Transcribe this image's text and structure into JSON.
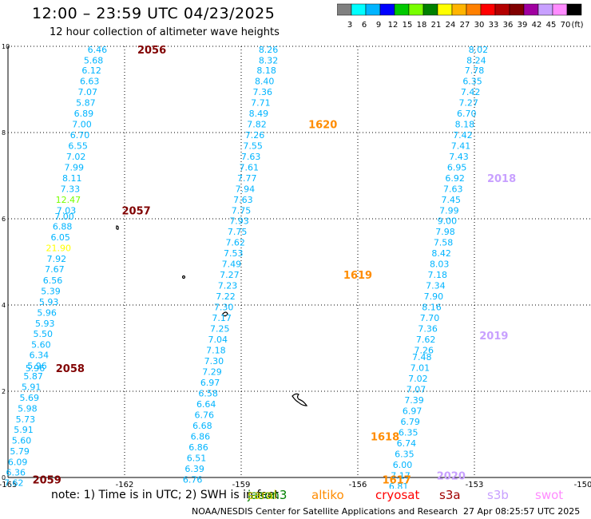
{
  "header": {
    "title": "12:00 – 23:59 UTC 04/23/2025",
    "subtitle": "12 hour collection of altimeter wave heights"
  },
  "colorbar": {
    "colors": [
      "#808080",
      "#00ffff",
      "#00b4ff",
      "#0000ff",
      "#00c800",
      "#78ff00",
      "#008000",
      "#ffff00",
      "#ffb400",
      "#ff8000",
      "#ff0000",
      "#b40000",
      "#800000",
      "#a000a0",
      "#c8a0ff",
      "#ff8cff",
      "#000000"
    ],
    "labels": [
      "3",
      "6",
      "9",
      "12",
      "15",
      "18",
      "21",
      "24",
      "27",
      "30",
      "33",
      "36",
      "39",
      "42",
      "45",
      "70",
      "(ft)"
    ]
  },
  "satellites": [
    {
      "name": "jason3",
      "label": "jason3",
      "color": "#008000"
    },
    {
      "name": "saral",
      "label": "saral",
      "color": "#c8c800"
    },
    {
      "name": "altika",
      "label": "altiko",
      "color": "#ff8c00"
    },
    {
      "name": "cryosat",
      "label": "cryosat",
      "color": "#ff0000"
    },
    {
      "name": "s3a",
      "label": "s3a",
      "color": "#a00000"
    },
    {
      "name": "s3b",
      "label": "s3b",
      "color": "#c8a0ff"
    },
    {
      "name": "swot",
      "label": "swot",
      "color": "#ff8cff"
    }
  ],
  "note": "note:  1) Time is in UTC;  2) SWH is in feet",
  "footer": {
    "left": "NOAA/NESDIS Center for Satellite Applications and Research",
    "right": "27 Apr 08:25:57 UTC 2025"
  },
  "chart_data": {
    "type": "scatter",
    "xlim": [
      -165,
      -150
    ],
    "ylim": [
      0,
      10
    ],
    "x_ticks": [
      "-165",
      "-162",
      "-159",
      "-156",
      "-153",
      "-150"
    ],
    "y_ticks": [
      "0",
      "2",
      "4",
      "6",
      "8",
      "10"
    ],
    "grid": true,
    "tracks": [
      {
        "name": "s3a-west",
        "color": "#00b4ff",
        "points": [
          [
            -162.7,
            9.93,
            "6.46"
          ],
          [
            -162.8,
            9.68,
            "5.68"
          ],
          [
            -162.85,
            9.44,
            "6.12"
          ],
          [
            -162.9,
            9.19,
            "6.63"
          ],
          [
            -162.95,
            8.94,
            "7.07"
          ],
          [
            -163.0,
            8.69,
            "5.87"
          ],
          [
            -163.05,
            8.44,
            "6.89"
          ],
          [
            -163.1,
            8.19,
            "7.00"
          ],
          [
            -163.15,
            7.94,
            "6.70"
          ],
          [
            -163.2,
            7.69,
            "6.55"
          ],
          [
            -163.25,
            7.44,
            "7.02"
          ],
          [
            -163.3,
            7.19,
            "7.99"
          ],
          [
            -163.35,
            6.94,
            "8.11"
          ],
          [
            -163.4,
            6.69,
            "7.33"
          ],
          [
            -163.45,
            6.44,
            "12.47"
          ],
          [
            -163.5,
            6.19,
            "7.03"
          ],
          [
            -163.55,
            6.06,
            "7.00"
          ],
          [
            -163.6,
            5.82,
            "6.88"
          ],
          [
            -163.65,
            5.57,
            "6.05"
          ],
          [
            -163.7,
            5.32,
            "21.90"
          ],
          [
            -163.75,
            5.07,
            "7.92"
          ],
          [
            -163.8,
            4.83,
            "7.67"
          ],
          [
            -163.85,
            4.57,
            "6.56"
          ],
          [
            -163.9,
            4.32,
            "5.39"
          ],
          [
            -163.95,
            4.07,
            "5.93"
          ],
          [
            -164.0,
            3.82,
            "5.96"
          ],
          [
            -164.05,
            3.57,
            "5.93"
          ],
          [
            -164.1,
            3.33,
            "5.50"
          ],
          [
            -164.15,
            3.08,
            "5.60"
          ],
          [
            -164.2,
            2.84,
            "6.34"
          ],
          [
            -164.25,
            2.59,
            "5.96"
          ],
          [
            -164.3,
            2.54,
            "5.96"
          ],
          [
            -164.35,
            2.35,
            "5.87"
          ],
          [
            -164.4,
            2.1,
            "5.91"
          ],
          [
            -164.45,
            1.85,
            "5.69"
          ],
          [
            -164.5,
            1.6,
            "5.98"
          ],
          [
            -164.55,
            1.35,
            "5.73"
          ],
          [
            -164.6,
            1.11,
            "5.91"
          ],
          [
            -164.65,
            0.86,
            "5.60"
          ],
          [
            -164.7,
            0.61,
            "5.79"
          ],
          [
            -164.75,
            0.36,
            "6.09"
          ],
          [
            -164.8,
            0.12,
            "6.36"
          ],
          [
            -164.85,
            -0.12,
            "7.62"
          ]
        ]
      },
      {
        "name": "s3b-middle",
        "color": "#00b4ff",
        "points": [
          [
            -158.3,
            9.93,
            "8.26"
          ],
          [
            -158.3,
            9.68,
            "8.32"
          ],
          [
            -158.35,
            9.44,
            "8.18"
          ],
          [
            -158.4,
            9.19,
            "8.40"
          ],
          [
            -158.45,
            8.94,
            "7.36"
          ],
          [
            -158.5,
            8.69,
            "7.71"
          ],
          [
            -158.55,
            8.44,
            "8.49"
          ],
          [
            -158.6,
            8.19,
            "7.82"
          ],
          [
            -158.65,
            7.94,
            "7.26"
          ],
          [
            -158.7,
            7.69,
            "7.55"
          ],
          [
            -158.75,
            7.44,
            "7.63"
          ],
          [
            -158.8,
            7.19,
            "7.61"
          ],
          [
            -158.85,
            6.94,
            "7.77"
          ],
          [
            -158.9,
            6.69,
            "7.94"
          ],
          [
            -158.95,
            6.44,
            "7.63"
          ],
          [
            -159.0,
            6.19,
            "7.75"
          ],
          [
            -159.05,
            5.95,
            "7.93"
          ],
          [
            -159.1,
            5.7,
            "7.75"
          ],
          [
            -159.15,
            5.45,
            "7.62"
          ],
          [
            -159.2,
            5.2,
            "7.53"
          ],
          [
            -159.25,
            4.95,
            "7.49"
          ],
          [
            -159.3,
            4.7,
            "7.27"
          ],
          [
            -159.35,
            4.45,
            "7.23"
          ],
          [
            -159.4,
            4.2,
            "7.22"
          ],
          [
            -159.45,
            3.95,
            "7.30"
          ],
          [
            -159.5,
            3.7,
            "7.17"
          ],
          [
            -159.55,
            3.45,
            "7.25"
          ],
          [
            -159.6,
            3.2,
            "7.04"
          ],
          [
            -159.65,
            2.95,
            "7.18"
          ],
          [
            -159.7,
            2.7,
            "7.30"
          ],
          [
            -159.75,
            2.45,
            "7.29"
          ],
          [
            -159.8,
            2.2,
            "6.97"
          ],
          [
            -159.85,
            1.95,
            "6.58"
          ],
          [
            -159.9,
            1.7,
            "6.64"
          ],
          [
            -159.95,
            1.45,
            "6.76"
          ],
          [
            -160.0,
            1.2,
            "6.68"
          ],
          [
            -160.05,
            0.95,
            "6.86"
          ],
          [
            -160.1,
            0.7,
            "6.86"
          ],
          [
            -160.15,
            0.45,
            "6.51"
          ],
          [
            -160.2,
            0.2,
            "6.39"
          ],
          [
            -160.25,
            -0.05,
            "6.76"
          ]
        ]
      },
      {
        "name": "s3b-east",
        "color": "#00b4ff",
        "points": [
          [
            -152.9,
            9.93,
            "8.02"
          ],
          [
            -152.95,
            9.68,
            "8.24"
          ],
          [
            -153.0,
            9.44,
            "7.78"
          ],
          [
            -153.05,
            9.19,
            "6.35"
          ],
          [
            -153.1,
            8.94,
            "7.42"
          ],
          [
            -153.15,
            8.69,
            "7.27"
          ],
          [
            -153.2,
            8.44,
            "6.70"
          ],
          [
            -153.25,
            8.19,
            "8.18"
          ],
          [
            -153.3,
            7.94,
            "7.42"
          ],
          [
            -153.35,
            7.69,
            "7.41"
          ],
          [
            -153.4,
            7.44,
            "7.43"
          ],
          [
            -153.45,
            7.19,
            "6.95"
          ],
          [
            -153.5,
            6.94,
            "6.92"
          ],
          [
            -153.55,
            6.69,
            "7.63"
          ],
          [
            -153.6,
            6.44,
            "7.45"
          ],
          [
            -153.65,
            6.19,
            "7.99"
          ],
          [
            -153.7,
            5.95,
            "9.00"
          ],
          [
            -153.75,
            5.7,
            "7.98"
          ],
          [
            -153.8,
            5.45,
            "7.58"
          ],
          [
            -153.85,
            5.2,
            "8.42"
          ],
          [
            -153.9,
            4.95,
            "8.03"
          ],
          [
            -153.95,
            4.7,
            "7.18"
          ],
          [
            -154.0,
            4.45,
            "7.34"
          ],
          [
            -154.05,
            4.2,
            "7.90"
          ],
          [
            -154.1,
            3.95,
            "8.16"
          ],
          [
            -154.15,
            3.7,
            "7.70"
          ],
          [
            -154.2,
            3.45,
            "7.36"
          ],
          [
            -154.25,
            3.2,
            "7.62"
          ],
          [
            -154.3,
            2.95,
            "7.26"
          ],
          [
            -154.35,
            2.8,
            "7.48"
          ],
          [
            -154.4,
            2.55,
            "7.01"
          ],
          [
            -154.45,
            2.3,
            "7.02"
          ],
          [
            -154.5,
            2.05,
            "7.07"
          ],
          [
            -154.55,
            1.8,
            "7.39"
          ],
          [
            -154.6,
            1.55,
            "6.97"
          ],
          [
            -154.65,
            1.3,
            "6.79"
          ],
          [
            -154.7,
            1.05,
            "6.35"
          ],
          [
            -154.75,
            0.8,
            "6.74"
          ],
          [
            -154.8,
            0.55,
            "6.35"
          ],
          [
            -154.85,
            0.3,
            "6.00"
          ],
          [
            -154.9,
            0.05,
            "7.17"
          ],
          [
            -154.95,
            -0.2,
            "6.81"
          ],
          [
            -155.0,
            -0.45,
            "6.31"
          ]
        ]
      }
    ],
    "time_labels": [
      {
        "text": "2056",
        "x": -161.3,
        "y": 9.93,
        "color": "#800000"
      },
      {
        "text": "2057",
        "x": -161.7,
        "y": 6.19,
        "color": "#800000"
      },
      {
        "text": "2058",
        "x": -163.4,
        "y": 2.54,
        "color": "#800000"
      },
      {
        "text": "2059",
        "x": -164.0,
        "y": -0.05,
        "color": "#800000"
      },
      {
        "text": "1620",
        "x": -156.9,
        "y": 8.19,
        "color": "#ff8c00"
      },
      {
        "text": "1619",
        "x": -156.0,
        "y": 4.7,
        "color": "#ff8c00"
      },
      {
        "text": "1618",
        "x": -155.3,
        "y": 0.95,
        "color": "#ff8c00"
      },
      {
        "text": "1617",
        "x": -155.0,
        "y": -0.05,
        "color": "#ff8c00"
      },
      {
        "text": "2018",
        "x": -152.3,
        "y": 6.94,
        "color": "#c8a0ff"
      },
      {
        "text": "2019",
        "x": -152.5,
        "y": 3.3,
        "color": "#c8a0ff"
      },
      {
        "text": "2020",
        "x": -153.6,
        "y": 0.05,
        "color": "#c8a0ff"
      }
    ]
  }
}
